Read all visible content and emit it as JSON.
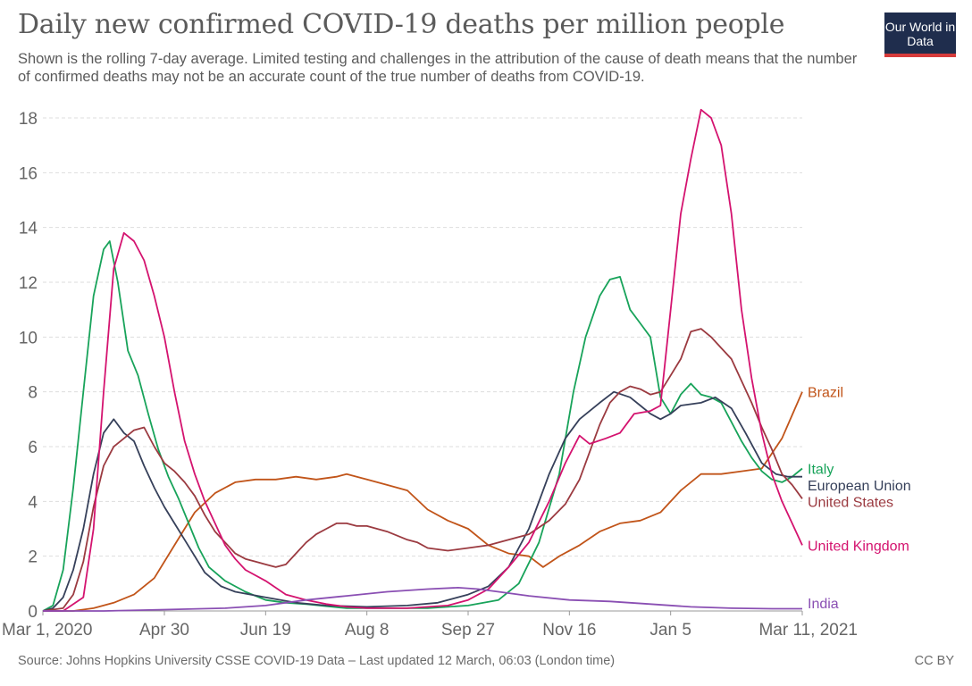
{
  "header": {
    "title": "Daily new confirmed COVID-19 deaths per million people",
    "subtitle": "Shown is the rolling 7-day average. Limited testing and challenges in the attribution of the cause of death means that the number of confirmed deaths may not be an accurate count of the true number of deaths from COVID-19.",
    "logo": "Our World in Data"
  },
  "footer": {
    "source": "Source: Johns Hopkins University CSSE COVID-19 Data – Last updated 12 March, 06:03 (London time)",
    "license": "CC BY"
  },
  "chart_data": {
    "type": "line",
    "x_unit": "days since Mar 1, 2020",
    "x_range": [
      0,
      375
    ],
    "x_ticks": [
      {
        "x": 0,
        "label": "Mar 1, 2020"
      },
      {
        "x": 60,
        "label": "Apr 30"
      },
      {
        "x": 110,
        "label": "Jun 19"
      },
      {
        "x": 160,
        "label": "Aug 8"
      },
      {
        "x": 210,
        "label": "Sep 27"
      },
      {
        "x": 260,
        "label": "Nov 16"
      },
      {
        "x": 310,
        "label": "Jan 5"
      },
      {
        "x": 375,
        "label": "Mar 11, 2021"
      }
    ],
    "ylim": [
      0,
      18
    ],
    "y_ticks": [
      0,
      2,
      4,
      6,
      8,
      10,
      12,
      14,
      16,
      18
    ],
    "grid": "horizontal dashed",
    "series": [
      {
        "name": "Brazil",
        "color": "#c15419",
        "points": [
          [
            0,
            0
          ],
          [
            15,
            0
          ],
          [
            25,
            0.1
          ],
          [
            35,
            0.3
          ],
          [
            45,
            0.6
          ],
          [
            55,
            1.2
          ],
          [
            65,
            2.4
          ],
          [
            75,
            3.6
          ],
          [
            85,
            4.3
          ],
          [
            95,
            4.7
          ],
          [
            105,
            4.8
          ],
          [
            115,
            4.8
          ],
          [
            125,
            4.9
          ],
          [
            135,
            4.8
          ],
          [
            145,
            4.9
          ],
          [
            150,
            5.0
          ],
          [
            160,
            4.8
          ],
          [
            170,
            4.6
          ],
          [
            180,
            4.4
          ],
          [
            190,
            3.7
          ],
          [
            200,
            3.3
          ],
          [
            210,
            3.0
          ],
          [
            220,
            2.4
          ],
          [
            230,
            2.1
          ],
          [
            240,
            2.0
          ],
          [
            247,
            1.6
          ],
          [
            255,
            2.0
          ],
          [
            265,
            2.4
          ],
          [
            275,
            2.9
          ],
          [
            285,
            3.2
          ],
          [
            295,
            3.3
          ],
          [
            305,
            3.6
          ],
          [
            315,
            4.4
          ],
          [
            325,
            5.0
          ],
          [
            335,
            5.0
          ],
          [
            345,
            5.1
          ],
          [
            355,
            5.2
          ],
          [
            365,
            6.3
          ],
          [
            375,
            8.0
          ]
        ]
      },
      {
        "name": "Italy",
        "color": "#18a35a",
        "points": [
          [
            0,
            0
          ],
          [
            5,
            0.2
          ],
          [
            10,
            1.5
          ],
          [
            15,
            4.5
          ],
          [
            20,
            8.0
          ],
          [
            25,
            11.5
          ],
          [
            30,
            13.2
          ],
          [
            33,
            13.5
          ],
          [
            37,
            12.0
          ],
          [
            42,
            9.5
          ],
          [
            47,
            8.6
          ],
          [
            52,
            7.2
          ],
          [
            57,
            5.9
          ],
          [
            62,
            4.9
          ],
          [
            67,
            4.1
          ],
          [
            72,
            3.2
          ],
          [
            77,
            2.3
          ],
          [
            82,
            1.6
          ],
          [
            90,
            1.1
          ],
          [
            100,
            0.7
          ],
          [
            110,
            0.4
          ],
          [
            120,
            0.3
          ],
          [
            130,
            0.25
          ],
          [
            150,
            0.1
          ],
          [
            170,
            0.1
          ],
          [
            190,
            0.1
          ],
          [
            210,
            0.2
          ],
          [
            225,
            0.4
          ],
          [
            235,
            1.0
          ],
          [
            245,
            2.5
          ],
          [
            255,
            5.0
          ],
          [
            262,
            8.0
          ],
          [
            268,
            10.0
          ],
          [
            275,
            11.5
          ],
          [
            280,
            12.1
          ],
          [
            285,
            12.2
          ],
          [
            290,
            11.0
          ],
          [
            295,
            10.5
          ],
          [
            300,
            10.0
          ],
          [
            305,
            7.8
          ],
          [
            310,
            7.2
          ],
          [
            315,
            7.9
          ],
          [
            320,
            8.3
          ],
          [
            325,
            7.9
          ],
          [
            330,
            7.8
          ],
          [
            335,
            7.6
          ],
          [
            340,
            6.9
          ],
          [
            345,
            6.2
          ],
          [
            350,
            5.6
          ],
          [
            355,
            5.1
          ],
          [
            360,
            4.8
          ],
          [
            365,
            4.7
          ],
          [
            370,
            4.9
          ],
          [
            375,
            5.2
          ]
        ]
      },
      {
        "name": "European Union",
        "color": "#36405a",
        "points": [
          [
            0,
            0
          ],
          [
            5,
            0.1
          ],
          [
            10,
            0.5
          ],
          [
            15,
            1.5
          ],
          [
            20,
            3.0
          ],
          [
            25,
            5.0
          ],
          [
            30,
            6.5
          ],
          [
            35,
            7.0
          ],
          [
            40,
            6.5
          ],
          [
            45,
            6.2
          ],
          [
            50,
            5.3
          ],
          [
            55,
            4.5
          ],
          [
            60,
            3.8
          ],
          [
            65,
            3.2
          ],
          [
            70,
            2.6
          ],
          [
            75,
            2.0
          ],
          [
            80,
            1.4
          ],
          [
            88,
            0.9
          ],
          [
            95,
            0.7
          ],
          [
            110,
            0.5
          ],
          [
            125,
            0.3
          ],
          [
            140,
            0.2
          ],
          [
            160,
            0.15
          ],
          [
            180,
            0.2
          ],
          [
            195,
            0.3
          ],
          [
            210,
            0.6
          ],
          [
            220,
            0.9
          ],
          [
            230,
            1.6
          ],
          [
            240,
            3.0
          ],
          [
            250,
            5.0
          ],
          [
            258,
            6.3
          ],
          [
            265,
            7.0
          ],
          [
            275,
            7.6
          ],
          [
            282,
            8.0
          ],
          [
            290,
            7.8
          ],
          [
            295,
            7.5
          ],
          [
            300,
            7.2
          ],
          [
            305,
            7.0
          ],
          [
            310,
            7.2
          ],
          [
            315,
            7.5
          ],
          [
            325,
            7.6
          ],
          [
            332,
            7.8
          ],
          [
            340,
            7.4
          ],
          [
            347,
            6.5
          ],
          [
            355,
            5.4
          ],
          [
            362,
            5.0
          ],
          [
            368,
            4.9
          ],
          [
            375,
            4.9
          ]
        ]
      },
      {
        "name": "United States",
        "color": "#9b3a40",
        "points": [
          [
            0,
            0
          ],
          [
            10,
            0.1
          ],
          [
            15,
            0.6
          ],
          [
            20,
            1.8
          ],
          [
            25,
            3.8
          ],
          [
            30,
            5.3
          ],
          [
            35,
            6.0
          ],
          [
            40,
            6.3
          ],
          [
            45,
            6.6
          ],
          [
            50,
            6.7
          ],
          [
            55,
            6.0
          ],
          [
            60,
            5.4
          ],
          [
            65,
            5.1
          ],
          [
            70,
            4.7
          ],
          [
            75,
            4.2
          ],
          [
            80,
            3.5
          ],
          [
            85,
            2.9
          ],
          [
            90,
            2.5
          ],
          [
            95,
            2.1
          ],
          [
            100,
            1.9
          ],
          [
            105,
            1.8
          ],
          [
            110,
            1.7
          ],
          [
            115,
            1.6
          ],
          [
            120,
            1.7
          ],
          [
            125,
            2.1
          ],
          [
            130,
            2.5
          ],
          [
            135,
            2.8
          ],
          [
            140,
            3.0
          ],
          [
            145,
            3.2
          ],
          [
            150,
            3.2
          ],
          [
            155,
            3.1
          ],
          [
            160,
            3.1
          ],
          [
            165,
            3.0
          ],
          [
            170,
            2.9
          ],
          [
            180,
            2.6
          ],
          [
            185,
            2.5
          ],
          [
            190,
            2.3
          ],
          [
            200,
            2.2
          ],
          [
            210,
            2.3
          ],
          [
            220,
            2.4
          ],
          [
            230,
            2.6
          ],
          [
            240,
            2.8
          ],
          [
            250,
            3.3
          ],
          [
            258,
            3.9
          ],
          [
            265,
            4.8
          ],
          [
            270,
            5.8
          ],
          [
            275,
            6.8
          ],
          [
            280,
            7.6
          ],
          [
            285,
            8.0
          ],
          [
            290,
            8.2
          ],
          [
            295,
            8.1
          ],
          [
            300,
            7.9
          ],
          [
            305,
            8.0
          ],
          [
            310,
            8.6
          ],
          [
            315,
            9.2
          ],
          [
            320,
            10.2
          ],
          [
            325,
            10.3
          ],
          [
            330,
            10.0
          ],
          [
            335,
            9.6
          ],
          [
            340,
            9.2
          ],
          [
            345,
            8.4
          ],
          [
            350,
            7.6
          ],
          [
            355,
            6.7
          ],
          [
            360,
            5.9
          ],
          [
            365,
            5.0
          ],
          [
            370,
            4.6
          ],
          [
            375,
            4.1
          ]
        ]
      },
      {
        "name": "United Kingdom",
        "color": "#d4136f",
        "points": [
          [
            0,
            0
          ],
          [
            10,
            0
          ],
          [
            20,
            0.5
          ],
          [
            25,
            3.0
          ],
          [
            30,
            8.0
          ],
          [
            35,
            12.5
          ],
          [
            40,
            13.8
          ],
          [
            45,
            13.5
          ],
          [
            50,
            12.8
          ],
          [
            55,
            11.5
          ],
          [
            60,
            10.0
          ],
          [
            65,
            8.0
          ],
          [
            70,
            6.2
          ],
          [
            75,
            5.0
          ],
          [
            80,
            4.0
          ],
          [
            85,
            3.2
          ],
          [
            90,
            2.4
          ],
          [
            95,
            1.9
          ],
          [
            100,
            1.5
          ],
          [
            110,
            1.1
          ],
          [
            120,
            0.6
          ],
          [
            130,
            0.4
          ],
          [
            140,
            0.25
          ],
          [
            150,
            0.15
          ],
          [
            160,
            0.1
          ],
          [
            170,
            0.1
          ],
          [
            180,
            0.1
          ],
          [
            190,
            0.15
          ],
          [
            200,
            0.2
          ],
          [
            210,
            0.4
          ],
          [
            220,
            0.8
          ],
          [
            230,
            1.6
          ],
          [
            240,
            2.5
          ],
          [
            250,
            4.0
          ],
          [
            258,
            5.4
          ],
          [
            265,
            6.4
          ],
          [
            270,
            6.1
          ],
          [
            278,
            6.3
          ],
          [
            285,
            6.5
          ],
          [
            292,
            7.2
          ],
          [
            300,
            7.3
          ],
          [
            305,
            7.5
          ],
          [
            310,
            11.0
          ],
          [
            315,
            14.5
          ],
          [
            320,
            16.5
          ],
          [
            325,
            18.3
          ],
          [
            330,
            18.0
          ],
          [
            335,
            17.0
          ],
          [
            340,
            14.5
          ],
          [
            345,
            11.0
          ],
          [
            350,
            8.5
          ],
          [
            355,
            6.5
          ],
          [
            360,
            5.0
          ],
          [
            365,
            4.0
          ],
          [
            370,
            3.2
          ],
          [
            375,
            2.4
          ]
        ]
      },
      {
        "name": "India",
        "color": "#8a4fb3",
        "points": [
          [
            0,
            0
          ],
          [
            30,
            0
          ],
          [
            60,
            0.05
          ],
          [
            90,
            0.1
          ],
          [
            110,
            0.2
          ],
          [
            130,
            0.4
          ],
          [
            150,
            0.55
          ],
          [
            170,
            0.7
          ],
          [
            190,
            0.8
          ],
          [
            205,
            0.85
          ],
          [
            215,
            0.8
          ],
          [
            225,
            0.7
          ],
          [
            240,
            0.55
          ],
          [
            260,
            0.4
          ],
          [
            280,
            0.35
          ],
          [
            300,
            0.25
          ],
          [
            320,
            0.15
          ],
          [
            340,
            0.1
          ],
          [
            360,
            0.08
          ],
          [
            375,
            0.08
          ]
        ]
      }
    ],
    "labels": [
      {
        "series": "Brazil",
        "text": "Brazil",
        "y": 8.0
      },
      {
        "series": "Italy",
        "text": "Italy",
        "y": 5.2
      },
      {
        "series": "European Union",
        "text": "European Union",
        "y": 4.6
      },
      {
        "series": "United States",
        "text": "United States",
        "y": 4.0
      },
      {
        "series": "United Kingdom",
        "text": "United Kingdom",
        "y": 2.4
      },
      {
        "series": "India",
        "text": "India",
        "y": 0.3
      }
    ]
  }
}
